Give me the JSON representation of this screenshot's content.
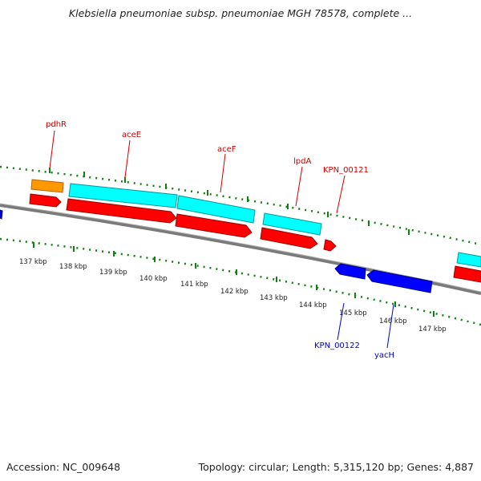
{
  "title": "Klebsiella pneumoniae subsp. pneumoniae MGH 78578, complete ...",
  "footer": {
    "accession": "Accession: NC_009648",
    "summary": "Topology: circular; Length: 5,315,120 bp; Genes: 4,887"
  },
  "colors": {
    "forward_cds": "#ff0000",
    "reverse_cds": "#0000ff",
    "forward_label": "#cc0000",
    "reverse_label": "#0000cc",
    "feature_orange": "#ff9900",
    "feature_cyan": "#00ffff",
    "backbone": "#808080",
    "tick_marks": "#008000"
  },
  "ticks": [
    "137 kbp",
    "138 kbp",
    "139 kbp",
    "140 kbp",
    "141 kbp",
    "142 kbp",
    "143 kbp",
    "144 kbp",
    "145 kbp",
    "146 kbp",
    "147 kbp"
  ],
  "genes_forward": [
    "pdhR",
    "aceE",
    "aceF",
    "lpdA",
    "KPN_00121"
  ],
  "genes_reverse": [
    "KPN_00122",
    "yacH"
  ]
}
